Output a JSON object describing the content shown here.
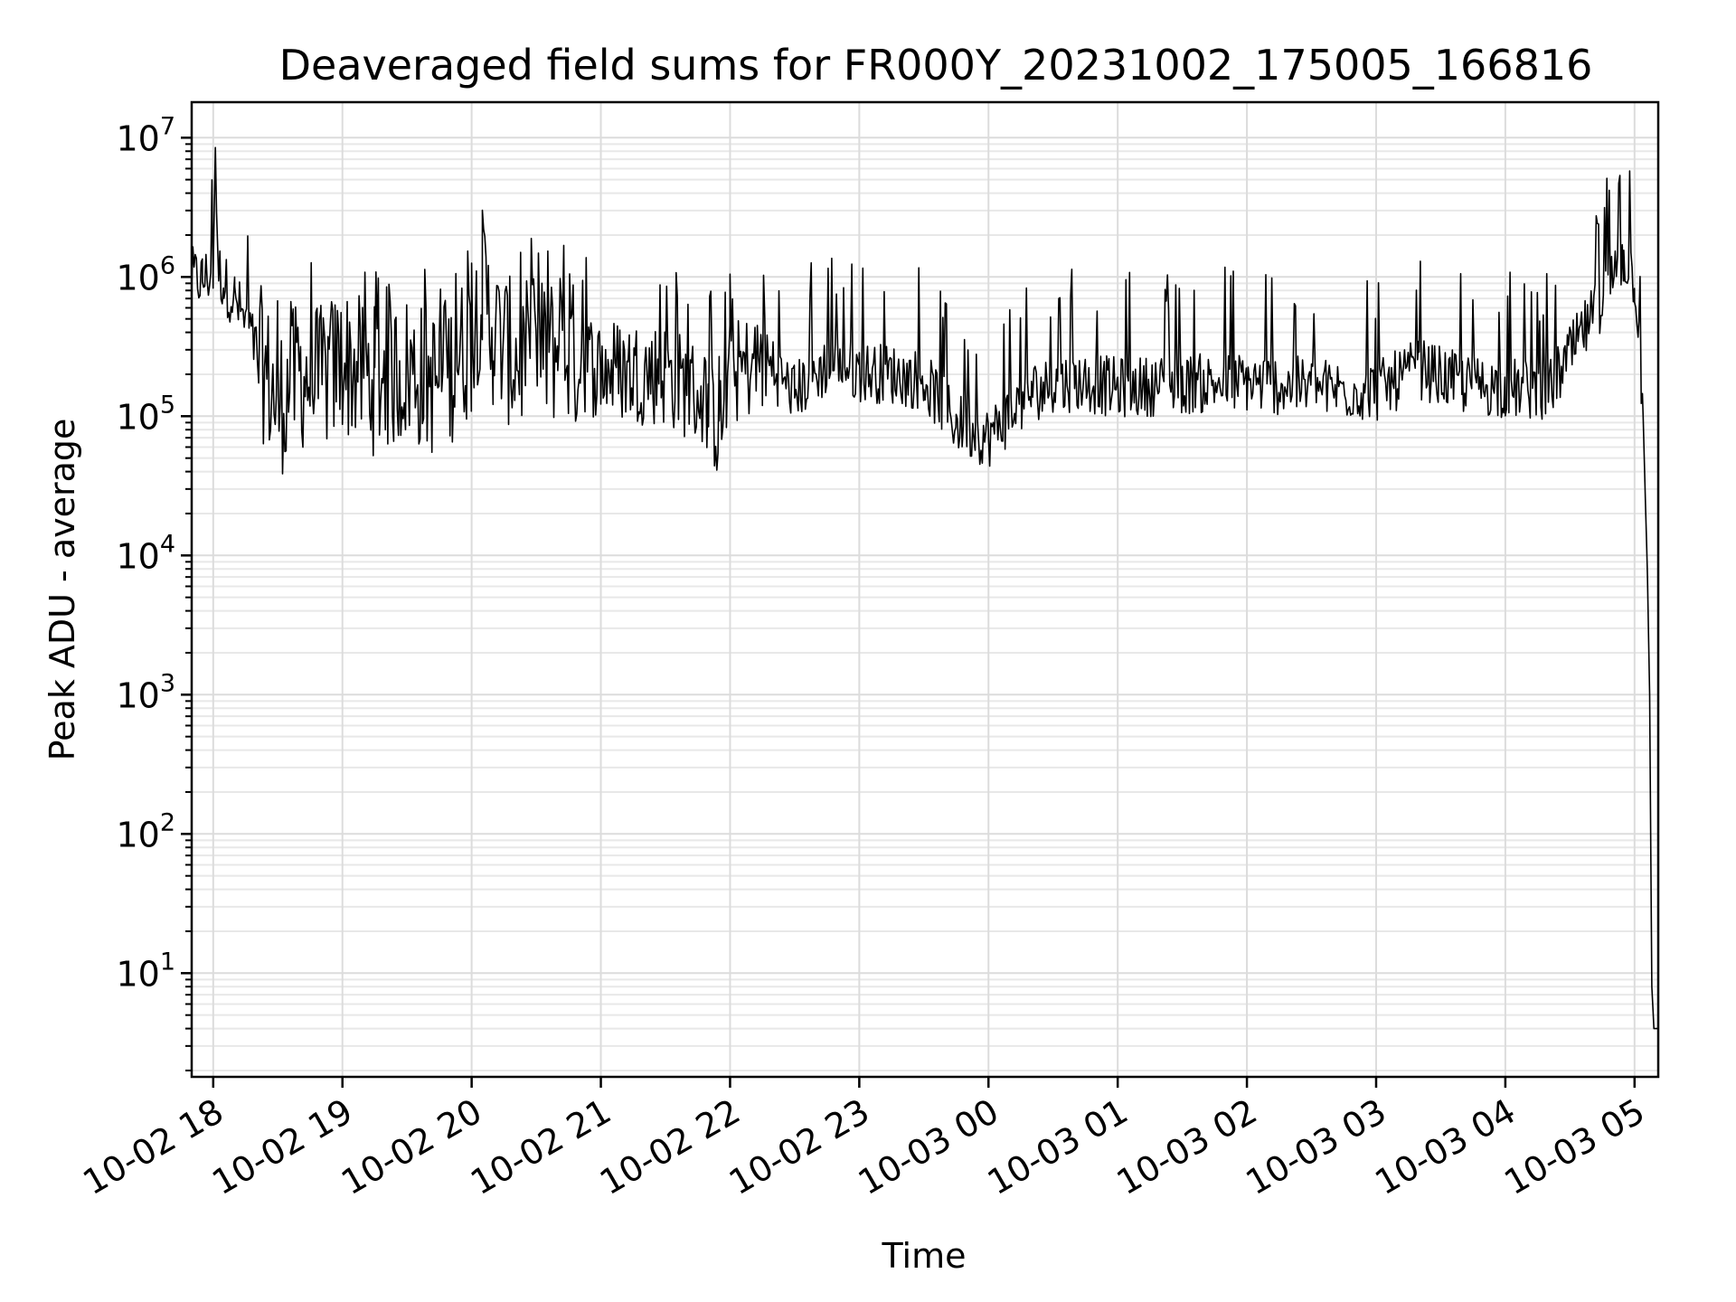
{
  "chart_data": {
    "type": "line",
    "title": "Deaveraged field sums for FR000Y_20231002_175005_166816",
    "xlabel": "Time",
    "ylabel": "Peak ADU - average",
    "yscale": "log",
    "ylim": [
      1.8,
      18000000
    ],
    "xlim": [
      "2023-10-02 17:50",
      "2023-10-03 05:11"
    ],
    "grid": true,
    "line_color": "#000000",
    "x_ticks": [
      {
        "t": "2023-10-02 18:00",
        "label": "10-02 18"
      },
      {
        "t": "2023-10-02 19:00",
        "label": "10-02 19"
      },
      {
        "t": "2023-10-02 20:00",
        "label": "10-02 20"
      },
      {
        "t": "2023-10-02 21:00",
        "label": "10-02 21"
      },
      {
        "t": "2023-10-02 22:00",
        "label": "10-02 22"
      },
      {
        "t": "2023-10-02 23:00",
        "label": "10-02 23"
      },
      {
        "t": "2023-10-03 00:00",
        "label": "10-03 00"
      },
      {
        "t": "2023-10-03 01:00",
        "label": "10-03 01"
      },
      {
        "t": "2023-10-03 02:00",
        "label": "10-03 02"
      },
      {
        "t": "2023-10-03 03:00",
        "label": "10-03 03"
      },
      {
        "t": "2023-10-03 04:00",
        "label": "10-03 04"
      },
      {
        "t": "2023-10-03 05:00",
        "label": "10-03 05"
      }
    ],
    "y_ticks": [
      {
        "value": 10,
        "base": "10",
        "exp": "1"
      },
      {
        "value": 100,
        "base": "10",
        "exp": "2"
      },
      {
        "value": 1000,
        "base": "10",
        "exp": "3"
      },
      {
        "value": 10000,
        "base": "10",
        "exp": "4"
      },
      {
        "value": 100000,
        "base": "10",
        "exp": "5"
      },
      {
        "value": 1000000,
        "base": "10",
        "exp": "6"
      },
      {
        "value": 10000000,
        "base": "10",
        "exp": "7"
      }
    ],
    "series": [
      {
        "x": [
          "2023-10-02 17:50",
          "2023-10-02 17:55",
          "2023-10-02 18:00",
          "2023-10-02 18:01",
          "2023-10-02 18:02",
          "2023-10-02 18:05",
          "2023-10-02 18:10",
          "2023-10-02 18:20",
          "2023-10-02 18:30",
          "2023-10-02 18:40",
          "2023-10-02 18:50",
          "2023-10-02 19:00",
          "2023-10-02 19:15",
          "2023-10-02 19:30",
          "2023-10-02 19:45",
          "2023-10-02 20:00",
          "2023-10-02 20:05",
          "2023-10-02 20:10",
          "2023-10-02 20:20",
          "2023-10-02 20:40",
          "2023-10-02 21:00",
          "2023-10-02 21:30",
          "2023-10-02 21:50",
          "2023-10-02 21:55",
          "2023-10-02 22:00",
          "2023-10-02 22:15",
          "2023-10-02 22:30",
          "2023-10-02 22:45",
          "2023-10-02 23:00",
          "2023-10-02 23:15",
          "2023-10-02 23:30",
          "2023-10-02 23:45",
          "2023-10-03 00:00",
          "2023-10-03 00:20",
          "2023-10-03 00:40",
          "2023-10-03 01:00",
          "2023-10-03 01:30",
          "2023-10-03 02:00",
          "2023-10-03 02:30",
          "2023-10-03 03:00",
          "2023-10-03 03:20",
          "2023-10-03 03:40",
          "2023-10-03 04:00",
          "2023-10-03 04:20",
          "2023-10-03 04:40",
          "2023-10-03 04:55",
          "2023-10-03 05:00",
          "2023-10-03 05:02",
          "2023-10-03 05:04",
          "2023-10-03 05:06",
          "2023-10-03 05:07",
          "2023-10-03 05:08",
          "2023-10-03 05:09",
          "2023-10-03 05:11"
        ],
        "y": [
          1000000,
          950000,
          1100000,
          8500000,
          1200000,
          900000,
          700000,
          300000,
          120000,
          200000,
          180000,
          250000,
          180000,
          220000,
          170000,
          350000,
          900000,
          400000,
          260000,
          300000,
          220000,
          200000,
          130000,
          75000,
          200000,
          250000,
          150000,
          230000,
          210000,
          200000,
          180000,
          90000,
          70000,
          150000,
          180000,
          160000,
          170000,
          175000,
          160000,
          150000,
          220000,
          170000,
          160000,
          150000,
          500000,
          1400000,
          1000000,
          400000,
          100000,
          7000,
          1000,
          8,
          4,
          4
        ]
      }
    ]
  }
}
